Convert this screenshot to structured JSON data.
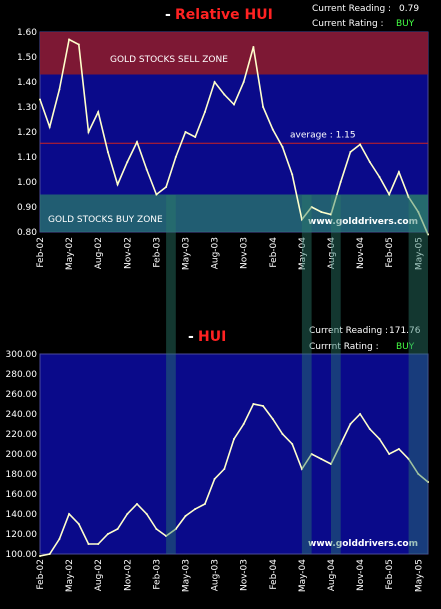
{
  "colors": {
    "page_bg": "#000000",
    "plot_bg": "#0a0a8a",
    "line": "#ffffcc",
    "sell_zone": "#8a1a2a",
    "buy_zone": "#2a7a6a",
    "avg_line": "#cc2222",
    "title_red": "#ff2222",
    "info_white": "#ffffff",
    "info_green": "#44ff44",
    "watermark": "#7a8ab0"
  },
  "chart_data": [
    {
      "type": "line",
      "title_dash": "-",
      "title": "Relative HUI",
      "current_reading_label": "Current Reading :",
      "current_reading_value": "0.79",
      "current_rating_label": "Current Rating :",
      "current_rating_value": "BUY",
      "ylim": [
        0.8,
        1.6
      ],
      "yticks": [
        "1.60",
        "1.50",
        "1.40",
        "1.30",
        "1.20",
        "1.10",
        "1.00",
        "0.90",
        "0.80"
      ],
      "xticks": [
        "Feb-02",
        "May-02",
        "Aug-02",
        "Nov-02",
        "Feb-03",
        "May-03",
        "Aug-03",
        "Nov-03",
        "Feb-04",
        "May-04",
        "Aug-04",
        "Nov-04",
        "Feb-05",
        "May-05"
      ],
      "sell_zone": {
        "label": "GOLD STOCKS SELL ZONE",
        "from": 1.43,
        "to": 1.6
      },
      "buy_zone": {
        "label": "GOLD STOCKS BUY ZONE",
        "from": 0.8,
        "to": 0.95
      },
      "average": {
        "label": "average : 1.15",
        "value": 1.155
      },
      "watermark": "www.golddrivers.com",
      "x_start": "2002-02",
      "x_end": "2005-06",
      "series": [
        {
          "x": [
            "2002-02",
            "2002-03",
            "2002-04",
            "2002-05",
            "2002-06",
            "2002-07",
            "2002-08",
            "2002-09",
            "2002-10",
            "2002-11",
            "2002-12",
            "2003-01",
            "2003-02",
            "2003-03",
            "2003-04",
            "2003-05",
            "2003-06",
            "2003-07",
            "2003-08",
            "2003-09",
            "2003-10",
            "2003-11",
            "2003-12",
            "2004-01",
            "2004-02",
            "2004-03",
            "2004-04",
            "2004-05",
            "2004-06",
            "2004-07",
            "2004-08",
            "2004-09",
            "2004-10",
            "2004-11",
            "2004-12",
            "2005-01",
            "2005-02",
            "2005-03",
            "2005-04",
            "2005-05",
            "2005-06"
          ],
          "y": [
            1.33,
            1.22,
            1.37,
            1.57,
            1.55,
            1.2,
            1.28,
            1.12,
            0.99,
            1.08,
            1.16,
            1.05,
            0.95,
            0.98,
            1.1,
            1.2,
            1.18,
            1.28,
            1.4,
            1.35,
            1.31,
            1.4,
            1.54,
            1.3,
            1.21,
            1.14,
            1.03,
            0.85,
            0.9,
            0.88,
            0.87,
            1.0,
            1.12,
            1.15,
            1.08,
            1.02,
            0.95,
            1.04,
            0.94,
            0.88,
            0.79
          ]
        }
      ]
    },
    {
      "type": "line",
      "title_dash": "-",
      "title": "HUI",
      "current_reading_label": "Current Reading :",
      "current_reading_value": "171.76",
      "current_rating_label": "Currrnt Rating :",
      "current_rating_value": "BUY",
      "ylim": [
        100,
        300
      ],
      "yticks": [
        "300.00",
        "280.00",
        "260.00",
        "240.00",
        "220.00",
        "200.00",
        "180.00",
        "160.00",
        "140.00",
        "120.00",
        "100.00"
      ],
      "xticks": [
        "Feb-02",
        "May-02",
        "Aug-02",
        "Nov-02",
        "Feb-03",
        "May-03",
        "Aug-03",
        "Nov-03",
        "Feb-04",
        "May-04",
        "Aug-04",
        "Nov-04",
        "Feb-05",
        "May-05"
      ],
      "watermark": "www.golddrivers.com",
      "x_start": "2002-02",
      "x_end": "2005-06",
      "series": [
        {
          "x": [
            "2002-02",
            "2002-03",
            "2002-04",
            "2002-05",
            "2002-06",
            "2002-07",
            "2002-08",
            "2002-09",
            "2002-10",
            "2002-11",
            "2002-12",
            "2003-01",
            "2003-02",
            "2003-03",
            "2003-04",
            "2003-05",
            "2003-06",
            "2003-07",
            "2003-08",
            "2003-09",
            "2003-10",
            "2003-11",
            "2003-12",
            "2004-01",
            "2004-02",
            "2004-03",
            "2004-04",
            "2004-05",
            "2004-06",
            "2004-07",
            "2004-08",
            "2004-09",
            "2004-10",
            "2004-11",
            "2004-12",
            "2005-01",
            "2005-02",
            "2005-03",
            "2005-04",
            "2005-05",
            "2005-06"
          ],
          "y": [
            98,
            100,
            115,
            140,
            130,
            110,
            110,
            120,
            125,
            140,
            150,
            140,
            125,
            118,
            125,
            138,
            145,
            150,
            175,
            185,
            215,
            230,
            250,
            248,
            235,
            220,
            210,
            185,
            200,
            195,
            190,
            210,
            230,
            240,
            225,
            215,
            200,
            205,
            195,
            180,
            172
          ]
        }
      ]
    }
  ]
}
